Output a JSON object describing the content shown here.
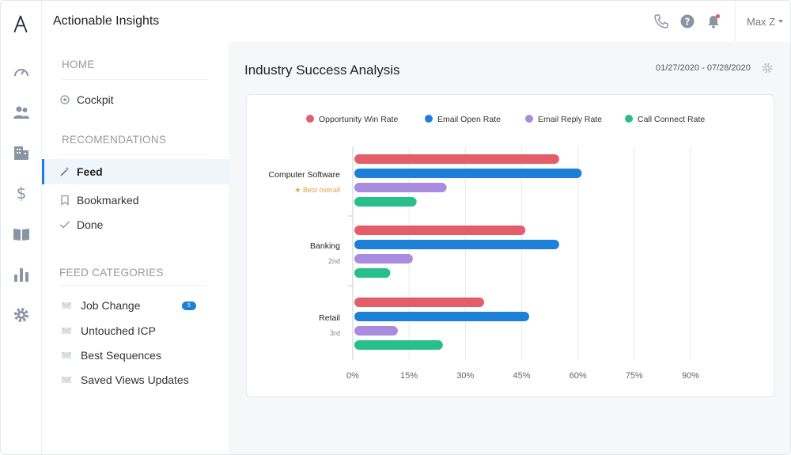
{
  "header": {
    "title": "Actionable Insights",
    "user_name": "Max Z",
    "icons": [
      "phone-icon",
      "help-icon",
      "bell-icon"
    ]
  },
  "rail": {
    "icons": [
      "logo",
      "dashboard-gauge-icon",
      "people-icon",
      "building-icon",
      "dollar-icon",
      "book-icon",
      "bar-chart-icon",
      "gear-icon"
    ]
  },
  "nav": {
    "home_heading": "HOME",
    "cockpit": "Cockpit",
    "recommendations_heading": "RECOMENDATIONS",
    "feed": "Feed",
    "bookmarked": "Bookmarked",
    "done": "Done",
    "categories_heading": "FEED CATEGORIES",
    "categories": [
      {
        "label": "Job Change",
        "badge": "5"
      },
      {
        "label": "Untouched ICP"
      },
      {
        "label": "Best Sequences"
      },
      {
        "label": "Saved Views Updates"
      }
    ]
  },
  "main": {
    "title": "Industry Success Analysis",
    "date_range": "01/27/2020 - 07/28/2020"
  },
  "chart_data": {
    "type": "bar",
    "orientation": "horizontal",
    "categories": [
      "Computer Software",
      "Banking",
      "Retail"
    ],
    "category_sublabels": [
      "★ Best overall",
      "2nd",
      "3rd"
    ],
    "series": [
      {
        "name": "Opportunity Win Rate",
        "color": "#e35d6a",
        "values": [
          55,
          46,
          35
        ]
      },
      {
        "name": "Email Open Rate",
        "color": "#1c7fd8",
        "values": [
          61,
          55,
          47
        ]
      },
      {
        "name": "Email Reply Rate",
        "color": "#a98be0",
        "values": [
          25,
          16,
          12
        ]
      },
      {
        "name": "Call Connect Rate",
        "color": "#27c08a",
        "values": [
          17,
          10,
          24
        ]
      }
    ],
    "x_ticks": [
      "0%",
      "15%",
      "30%",
      "45%",
      "60%",
      "75%",
      "90%"
    ],
    "xlim": [
      0,
      90
    ],
    "grid": true,
    "legend_position": "top",
    "highlight_color": "#e8a04a"
  }
}
